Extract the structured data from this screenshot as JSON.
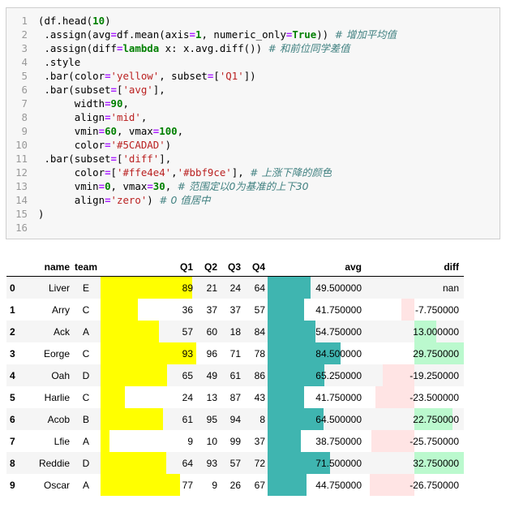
{
  "code": {
    "lines": [
      {
        "n": "1",
        "tokens": [
          {
            "t": "(df.head("
          },
          {
            "t": "10",
            "c": "num"
          },
          {
            "t": ")"
          }
        ]
      },
      {
        "n": "2",
        "tokens": [
          {
            "t": " .assign(avg"
          },
          {
            "t": "=",
            "c": "op"
          },
          {
            "t": "df.mean(axis"
          },
          {
            "t": "=",
            "c": "op"
          },
          {
            "t": "1",
            "c": "num"
          },
          {
            "t": ", numeric_only"
          },
          {
            "t": "=",
            "c": "op"
          },
          {
            "t": "True",
            "c": "kw"
          },
          {
            "t": ")) "
          },
          {
            "t": "# 增加平均值",
            "c": "cm"
          }
        ]
      },
      {
        "n": "3",
        "tokens": [
          {
            "t": " .assign(diff"
          },
          {
            "t": "=",
            "c": "op"
          },
          {
            "t": "lambda",
            "c": "kw"
          },
          {
            "t": " x: x.avg.diff()) "
          },
          {
            "t": "# 和前位同学差值",
            "c": "cm"
          }
        ]
      },
      {
        "n": "4",
        "tokens": [
          {
            "t": " .style"
          }
        ]
      },
      {
        "n": "5",
        "tokens": [
          {
            "t": " .bar(color"
          },
          {
            "t": "=",
            "c": "op"
          },
          {
            "t": "'yellow'",
            "c": "str"
          },
          {
            "t": ", subset"
          },
          {
            "t": "=",
            "c": "op"
          },
          {
            "t": "["
          },
          {
            "t": "'Q1'",
            "c": "str"
          },
          {
            "t": "])"
          }
        ]
      },
      {
        "n": "6",
        "tokens": [
          {
            "t": " .bar(subset"
          },
          {
            "t": "=",
            "c": "op"
          },
          {
            "t": "["
          },
          {
            "t": "'avg'",
            "c": "str"
          },
          {
            "t": "],"
          }
        ]
      },
      {
        "n": "7",
        "tokens": [
          {
            "t": "      width"
          },
          {
            "t": "=",
            "c": "op"
          },
          {
            "t": "90",
            "c": "num"
          },
          {
            "t": ","
          }
        ]
      },
      {
        "n": "8",
        "tokens": [
          {
            "t": "      align"
          },
          {
            "t": "=",
            "c": "op"
          },
          {
            "t": "'mid'",
            "c": "str"
          },
          {
            "t": ","
          }
        ]
      },
      {
        "n": "9",
        "tokens": [
          {
            "t": "      vmin"
          },
          {
            "t": "=",
            "c": "op"
          },
          {
            "t": "60",
            "c": "num"
          },
          {
            "t": ", vmax"
          },
          {
            "t": "=",
            "c": "op"
          },
          {
            "t": "100",
            "c": "num"
          },
          {
            "t": ","
          }
        ]
      },
      {
        "n": "10",
        "tokens": [
          {
            "t": "      color"
          },
          {
            "t": "=",
            "c": "op"
          },
          {
            "t": "'#5CADAD'",
            "c": "str"
          },
          {
            "t": ")"
          }
        ]
      },
      {
        "n": "11",
        "tokens": [
          {
            "t": " .bar(subset"
          },
          {
            "t": "=",
            "c": "op"
          },
          {
            "t": "["
          },
          {
            "t": "'diff'",
            "c": "str"
          },
          {
            "t": "],"
          }
        ]
      },
      {
        "n": "12",
        "tokens": [
          {
            "t": "      color"
          },
          {
            "t": "=",
            "c": "op"
          },
          {
            "t": "["
          },
          {
            "t": "'#ffe4e4'",
            "c": "str"
          },
          {
            "t": ","
          },
          {
            "t": "'#bbf9ce'",
            "c": "str"
          },
          {
            "t": "], "
          },
          {
            "t": "# 上涨下降的颜色",
            "c": "cm"
          }
        ]
      },
      {
        "n": "13",
        "tokens": [
          {
            "t": "      vmin"
          },
          {
            "t": "=",
            "c": "op"
          },
          {
            "t": "0",
            "c": "num"
          },
          {
            "t": ", vmax"
          },
          {
            "t": "=",
            "c": "op"
          },
          {
            "t": "30",
            "c": "num"
          },
          {
            "t": ", "
          },
          {
            "t": "# 范围定以0为基准的上下30",
            "c": "cm"
          }
        ]
      },
      {
        "n": "14",
        "tokens": [
          {
            "t": "      align"
          },
          {
            "t": "=",
            "c": "op"
          },
          {
            "t": "'zero'",
            "c": "str"
          },
          {
            "t": ") "
          },
          {
            "t": "# 0 值居中",
            "c": "cm"
          }
        ]
      },
      {
        "n": "15",
        "tokens": [
          {
            "t": ")"
          }
        ]
      },
      {
        "n": "16",
        "tokens": []
      }
    ]
  },
  "table": {
    "headers": {
      "index": "",
      "name": "name",
      "team": "team",
      "q1": "Q1",
      "q2": "Q2",
      "q3": "Q3",
      "q4": "Q4",
      "avg": "avg",
      "diff": "diff"
    },
    "rows": [
      {
        "index": "0",
        "name": "Liver",
        "team": "E",
        "q1": "89",
        "q2": "21",
        "q3": "24",
        "q4": "64",
        "avg": "49.500000",
        "diff": "nan"
      },
      {
        "index": "1",
        "name": "Arry",
        "team": "C",
        "q1": "36",
        "q2": "37",
        "q3": "37",
        "q4": "57",
        "avg": "41.750000",
        "diff": "-7.750000"
      },
      {
        "index": "2",
        "name": "Ack",
        "team": "A",
        "q1": "57",
        "q2": "60",
        "q3": "18",
        "q4": "84",
        "avg": "54.750000",
        "diff": "13.000000"
      },
      {
        "index": "3",
        "name": "Eorge",
        "team": "C",
        "q1": "93",
        "q2": "96",
        "q3": "71",
        "q4": "78",
        "avg": "84.500000",
        "diff": "29.750000"
      },
      {
        "index": "4",
        "name": "Oah",
        "team": "D",
        "q1": "65",
        "q2": "49",
        "q3": "61",
        "q4": "86",
        "avg": "65.250000",
        "diff": "-19.250000"
      },
      {
        "index": "5",
        "name": "Harlie",
        "team": "C",
        "q1": "24",
        "q2": "13",
        "q3": "87",
        "q4": "43",
        "avg": "41.750000",
        "diff": "-23.500000"
      },
      {
        "index": "6",
        "name": "Acob",
        "team": "B",
        "q1": "61",
        "q2": "95",
        "q3": "94",
        "q4": "8",
        "avg": "64.500000",
        "diff": "22.750000"
      },
      {
        "index": "7",
        "name": "Lfie",
        "team": "A",
        "q1": "9",
        "q2": "10",
        "q3": "99",
        "q4": "37",
        "avg": "38.750000",
        "diff": "-25.750000"
      },
      {
        "index": "8",
        "name": "Reddie",
        "team": "D",
        "q1": "64",
        "q2": "93",
        "q3": "57",
        "q4": "72",
        "avg": "71.500000",
        "diff": "32.750000"
      },
      {
        "index": "9",
        "name": "Oscar",
        "team": "A",
        "q1": "77",
        "q2": "9",
        "q3": "26",
        "q4": "67",
        "avg": "44.750000",
        "diff": "-26.750000"
      }
    ],
    "bar_colors": {
      "q1": "#ffff00",
      "avg": "#3fb5b0",
      "diff_negative": "#ffe4e4",
      "diff_positive": "#bbf9ce"
    },
    "stripe_color": "#f5f5f5"
  }
}
